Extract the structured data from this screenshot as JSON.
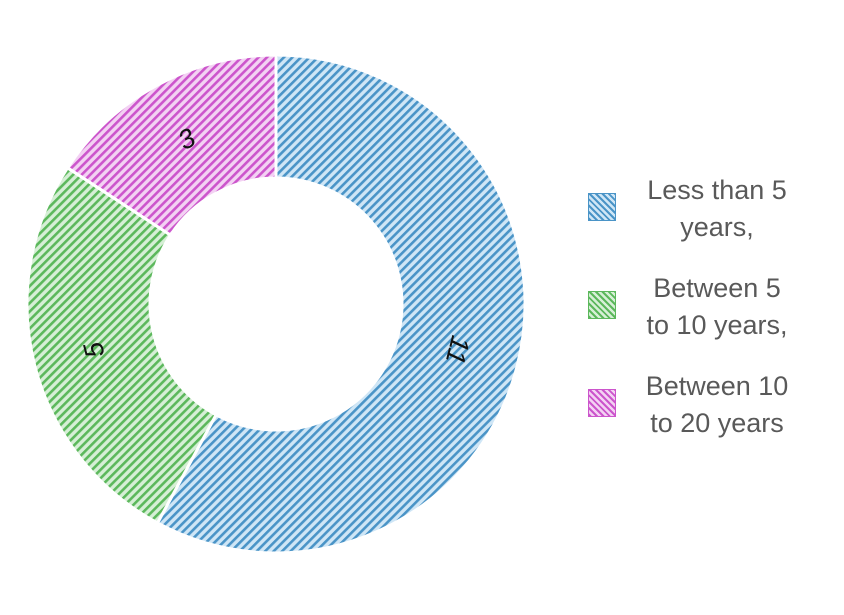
{
  "chart_data": {
    "type": "pie",
    "variant": "donut",
    "categories": [
      "Less than 5 years,",
      "Between 5 to 10 years,",
      "Between 10 to 20 years"
    ],
    "values": [
      11,
      5,
      3
    ],
    "data_labels": [
      "11",
      "5",
      "3"
    ],
    "colors": [
      "#4a94c7",
      "#5cb85c",
      "#cc55cc"
    ],
    "light_colors": [
      "#cfe6f6",
      "#d6efd6",
      "#f3d2f3"
    ],
    "legend_position": "right",
    "fill_pattern": "diagonal-hatch"
  },
  "legend": {
    "items": [
      {
        "line1": "Less than 5",
        "line2": "years,"
      },
      {
        "line1": "Between 5",
        "line2": "to 10 years,"
      },
      {
        "line1": "Between 10",
        "line2": "to 20 years"
      }
    ]
  }
}
